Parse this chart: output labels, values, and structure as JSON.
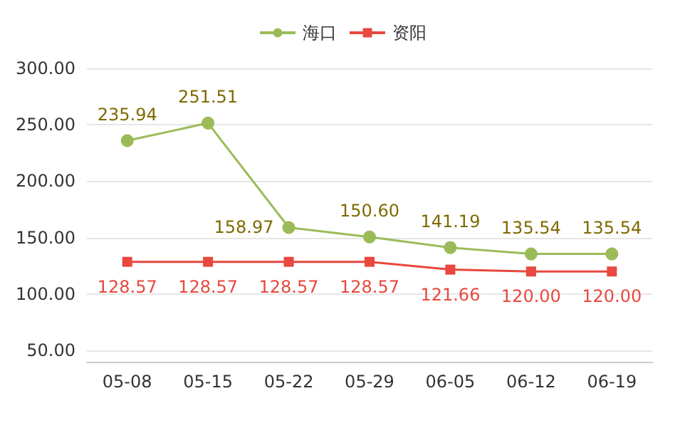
{
  "chart_data": {
    "type": "line",
    "categories": [
      "05-08",
      "05-15",
      "05-22",
      "05-29",
      "06-05",
      "06-12",
      "06-19"
    ],
    "series": [
      {
        "name": "海口",
        "color": "#9bbb59",
        "marker": "circle",
        "values": [
          235.94,
          251.51,
          158.97,
          150.6,
          141.19,
          135.54,
          135.54
        ],
        "value_labels": [
          "235.94",
          "251.51",
          "158.97",
          "150.60",
          "141.19",
          "135.54",
          "135.54"
        ]
      },
      {
        "name": "资阳",
        "color": "#e8483f",
        "marker": "square",
        "values": [
          128.57,
          128.57,
          128.57,
          128.57,
          121.66,
          120.0,
          120.0
        ],
        "value_labels": [
          "128.57",
          "128.57",
          "128.57",
          "128.57",
          "121.66",
          "120.00",
          "120.00"
        ]
      }
    ],
    "ylim": [
      40,
      300
    ],
    "yticks": [
      {
        "value": 50,
        "label": "50.00"
      },
      {
        "value": 100,
        "label": "100.00"
      },
      {
        "value": 150,
        "label": "150.00"
      },
      {
        "value": 200,
        "label": "200.00"
      },
      {
        "value": 250,
        "label": "250.00"
      },
      {
        "value": 300,
        "label": "300.00"
      }
    ],
    "grid": "y",
    "legend": "top",
    "line_style": "solid"
  }
}
